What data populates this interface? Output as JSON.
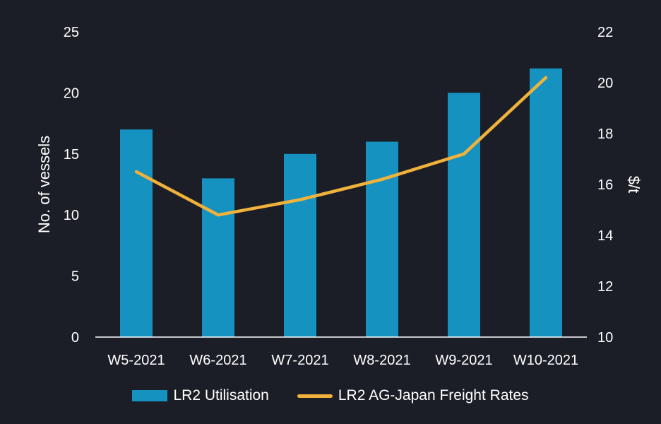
{
  "chart_data": {
    "type": "bar",
    "categories": [
      "W5-2021",
      "W6-2021",
      "W7-2021",
      "W8-2021",
      "W9-2021",
      "W10-2021"
    ],
    "series": [
      {
        "name": "LR2 Utilisation",
        "type": "bar",
        "axis": "left",
        "values": [
          17,
          13,
          15,
          16,
          20,
          22
        ],
        "color": "#1592bf"
      },
      {
        "name": "LR2 AG-Japan Freight Rates",
        "type": "line",
        "axis": "right",
        "values": [
          16.5,
          14.8,
          15.4,
          16.2,
          17.2,
          20.2
        ],
        "color": "#f1b23c"
      }
    ],
    "ylabel": "No. of vessels",
    "y2label": "$/t",
    "ylim": [
      0,
      25
    ],
    "y2lim": [
      10,
      22
    ],
    "yticks": [
      "0",
      "5",
      "10",
      "15",
      "20",
      "25"
    ],
    "y2ticks": [
      "10",
      "12",
      "14",
      "16",
      "18",
      "20",
      "22"
    ],
    "legend_position": "bottom",
    "grid": false
  }
}
